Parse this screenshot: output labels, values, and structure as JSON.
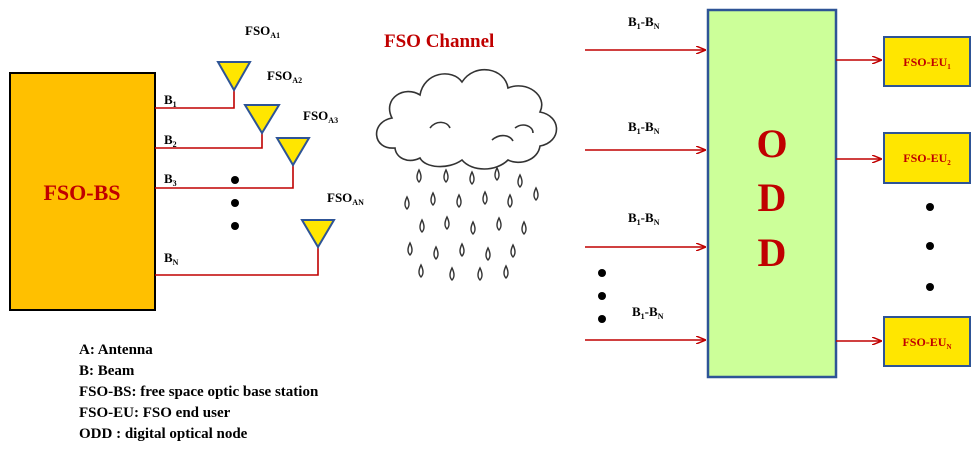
{
  "base_station": {
    "label": "FSO-BS"
  },
  "channel": {
    "title": "FSO Channel"
  },
  "beams": [
    {
      "base": "B",
      "sub": "1"
    },
    {
      "base": "B",
      "sub": "2"
    },
    {
      "base": "B",
      "sub": "3"
    },
    {
      "base": "B",
      "sub": "N"
    }
  ],
  "antennas": [
    {
      "base": "FSO",
      "sub": "A1"
    },
    {
      "base": "FSO",
      "sub": "A2"
    },
    {
      "base": "FSO",
      "sub": "A3"
    },
    {
      "base": "FSO",
      "sub": "AN"
    }
  ],
  "odd_inputs": [
    {
      "a": "B",
      "a_sub": "1",
      "sep": "-",
      "b": "B",
      "b_sub": "N"
    },
    {
      "a": "B",
      "a_sub": "1",
      "sep": "-",
      "b": "B",
      "b_sub": "N"
    },
    {
      "a": "B",
      "a_sub": "1",
      "sep": "-",
      "b": "B",
      "b_sub": "N"
    },
    {
      "a": "B",
      "a_sub": "1",
      "sep": "-",
      "b": "B",
      "b_sub": "N"
    }
  ],
  "odd": {
    "letters": [
      "O",
      "D",
      "D"
    ]
  },
  "end_users": [
    {
      "base": "FSO-EU",
      "sub": "1"
    },
    {
      "base": "FSO-EU",
      "sub": "2"
    },
    {
      "base": "FSO-EU",
      "sub": "N"
    }
  ],
  "legend": [
    "A: Antenna",
    "B: Beam",
    "FSO-BS: free space optic base station",
    "FSO-EU: FSO end user",
    "ODD : digital optical node"
  ],
  "colors": {
    "base_station_fill": "#ffc000",
    "antenna_fill": "#ffe600",
    "odd_fill": "#ccff99",
    "odd_border": "#2e5496",
    "end_user_fill": "#ffe600",
    "line": "#c00000",
    "label_red": "#c00000"
  }
}
